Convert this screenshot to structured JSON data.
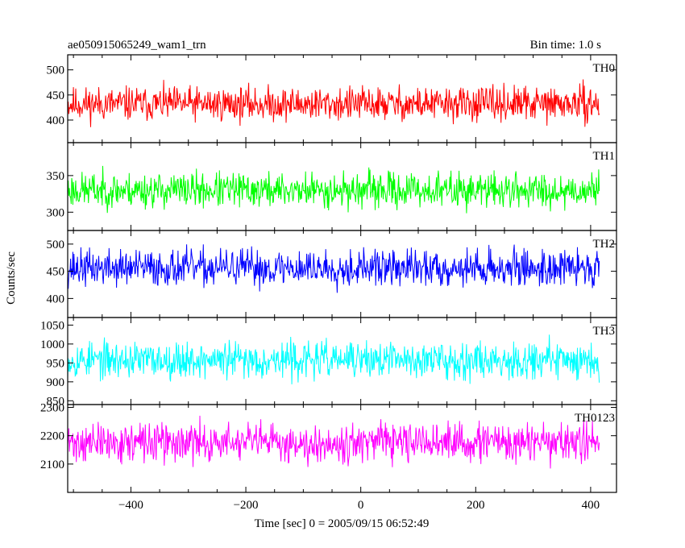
{
  "chart_data": {
    "type": "line",
    "title_left": "ae050915065249_wam1_trn",
    "title_right": "Bin time: 1.0 s",
    "xlabel": "Time [sec] 0 = 2005/09/15 06:52:49",
    "ylabel": "Counts/sec",
    "xlim": [
      -510,
      445
    ],
    "x_ticks": [
      -400,
      -200,
      0,
      200,
      400
    ],
    "x_range": [
      -510,
      415
    ],
    "panels": [
      {
        "name": "TH0",
        "color": "#ff0000",
        "ylim": [
          355,
          530
        ],
        "y_ticks": [
          400,
          450,
          500
        ],
        "mean": 432,
        "spread": 24,
        "min": 360,
        "max": 525,
        "seed": 11
      },
      {
        "name": "TH1",
        "color": "#00ff00",
        "ylim": [
          275,
          395
        ],
        "y_ticks": [
          300,
          350
        ],
        "mean": 330,
        "spread": 17,
        "min": 278,
        "max": 392,
        "seed": 23
      },
      {
        "name": "TH2",
        "color": "#0000ff",
        "ylim": [
          365,
          525
        ],
        "y_ticks": [
          400,
          450,
          500
        ],
        "mean": 456,
        "spread": 24,
        "min": 372,
        "max": 525,
        "seed": 37
      },
      {
        "name": "TH3",
        "color": "#00ffff",
        "ylim": [
          840,
          1070
        ],
        "y_ticks": [
          850,
          900,
          950,
          1000,
          1050
        ],
        "mean": 958,
        "spread": 34,
        "min": 850,
        "max": 1068,
        "seed": 53
      },
      {
        "name": "TH0123",
        "color": "#ff00ff",
        "ylim": [
          2000,
          2310
        ],
        "y_ticks": [
          2100,
          2200,
          2300
        ],
        "mean": 2175,
        "spread": 48,
        "min": 2010,
        "max": 2305,
        "seed": 71
      }
    ]
  }
}
